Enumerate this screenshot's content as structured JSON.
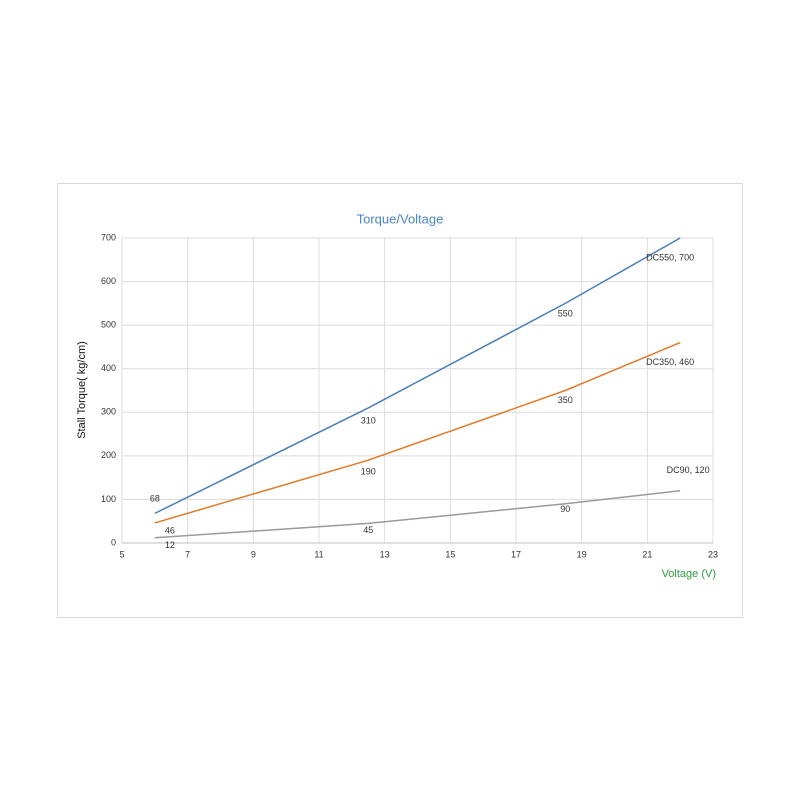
{
  "chart_data": {
    "type": "line",
    "title": "Torque/Voltage",
    "x_label": "Voltage (V)",
    "y_label": "Stall  Torque( kg/cm)",
    "x": [
      6,
      12.5,
      18.5,
      22
    ],
    "series": [
      {
        "name": "DC550",
        "color": "#4a7ebb",
        "values": [
          68,
          310,
          550,
          700
        ],
        "value_labels": [
          "68",
          "310",
          "550",
          "DC550, 700"
        ]
      },
      {
        "name": "DC350",
        "color": "#e07b2a",
        "values": [
          46,
          190,
          350,
          460
        ],
        "value_labels": [
          "46",
          "190",
          "350",
          "DC350, 460"
        ]
      },
      {
        "name": "DC90",
        "color": "#9a9a9a",
        "values": [
          12,
          45,
          90,
          120
        ],
        "value_labels": [
          "12",
          "45",
          "90",
          "DC90, 120"
        ]
      }
    ],
    "xlim": [
      5,
      23
    ],
    "xticks": [
      5,
      7,
      9,
      11,
      13,
      15,
      17,
      19,
      21,
      23
    ],
    "ylim": [
      0,
      700
    ],
    "yticks": [
      0,
      100,
      200,
      300,
      400,
      500,
      600,
      700
    ],
    "grid": true
  }
}
